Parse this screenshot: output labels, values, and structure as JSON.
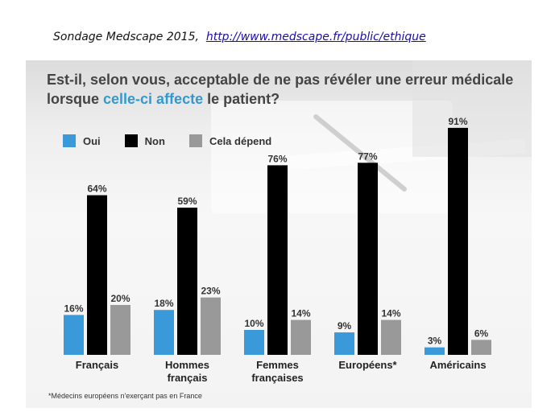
{
  "source": {
    "prefix": "Sondage Medscape 2015,",
    "link": "http://www.medscape.fr/public/ethique"
  },
  "question": {
    "part1": "Est-il, selon vous, acceptable de ne pas révéler une erreur médicale",
    "part2_before": "lorsque ",
    "part2_highlight": "celle-ci affecte",
    "part2_after": " le patient?"
  },
  "footnote": "*Médecins européens n'exerçant pas en France",
  "colors": {
    "oui": "#3a9ad9",
    "non": "#000000",
    "depend": "#999999",
    "highlight": "#2e9ad6"
  },
  "chart_data": {
    "type": "bar",
    "categories": [
      [
        "Français"
      ],
      [
        "Hommes",
        "français"
      ],
      [
        "Femmes",
        "françaises"
      ],
      [
        "Européens*"
      ],
      [
        "Américains"
      ]
    ],
    "series": [
      {
        "name": "Oui",
        "values": [
          16,
          18,
          10,
          9,
          3
        ]
      },
      {
        "name": "Non",
        "values": [
          64,
          59,
          76,
          77,
          91
        ]
      },
      {
        "name": "Cela dépend",
        "values": [
          20,
          23,
          14,
          14,
          6
        ]
      }
    ],
    "value_suffix": "%",
    "ylim": [
      0,
      100
    ],
    "grid": false,
    "legend": "top-left"
  }
}
